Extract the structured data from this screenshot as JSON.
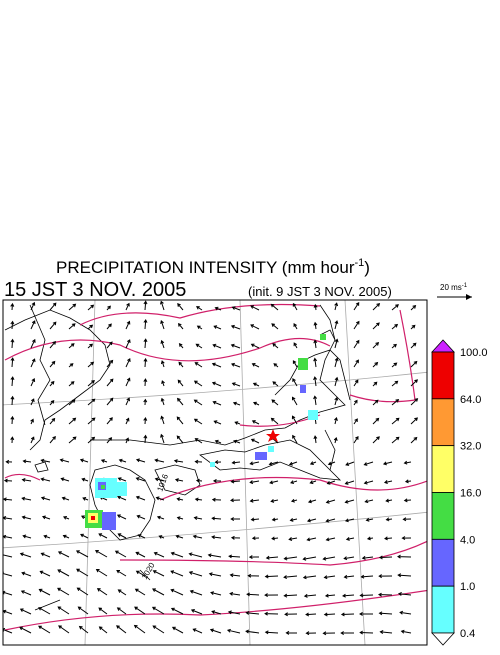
{
  "title": {
    "text": "PRECIPITATION INTENSITY (mm hour",
    "sup": "-1",
    "close": ")"
  },
  "valid_time": "15 JST 3 NOV. 2005",
  "init_time": "(init. 9 JST 3 NOV. 2005)",
  "vector_scale": {
    "text": "20 ms",
    "sup": "-1"
  },
  "colorbar": {
    "colors": [
      "#cc22ff",
      "#ee0000",
      "#ff9933",
      "#ffff66",
      "#44dd44",
      "#6666ff",
      "#66ffff",
      "#ffffff"
    ],
    "labels": [
      "100.0",
      "64.0",
      "32.0",
      "16.0",
      "4.0",
      "1.0",
      "0.4"
    ]
  },
  "contour_labels": [
    "1016",
    "1020"
  ]
}
